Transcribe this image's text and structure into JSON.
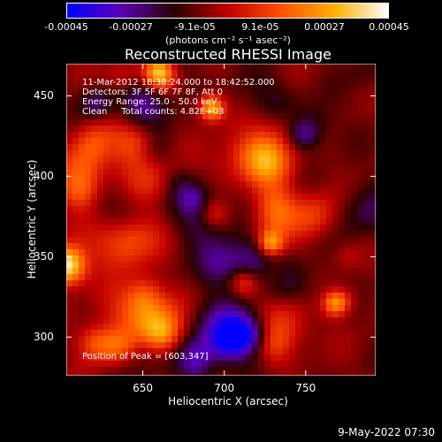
{
  "colorbar": {
    "ticks": [
      "-0.00045",
      "-0.00027",
      "-9.1e-05",
      "9.1e-05",
      "0.00027",
      "0.00045"
    ],
    "tick_values": [
      -0.00045,
      -0.00027,
      -9.1e-05,
      9.1e-05,
      0.00027,
      0.00045
    ],
    "units": "(photons cm⁻² s⁻¹ asec⁻²)",
    "colors": [
      "#0000ff",
      "#5a00b8",
      "#2a0000",
      "#c00000",
      "#ff5000",
      "#ffb000",
      "#ffffff"
    ]
  },
  "chart_data": {
    "type": "heatmap",
    "title": "Reconstructed RHESSI Image",
    "xlabel": "Heliocentric X (arcsec)",
    "ylabel": "Heliocentric Y (arcsec)",
    "xlim": [
      603,
      793
    ],
    "ylim": [
      276,
      470
    ],
    "xticks": [
      650,
      700,
      750
    ],
    "yticks": [
      300,
      350,
      400,
      450
    ],
    "zlim": [
      -0.00045,
      0.00045
    ],
    "grid": false,
    "annotations": [
      "11-Mar-2012 18:38:24.000 to 18:42:52.000",
      "Detectors: 3F 5F 6F 7F 8F, Att 0",
      "Energy Range: 25.0 - 50.0 keV",
      "Clean     Total counts: 4.82E+03",
      "Position of Peak = [603,347]"
    ]
  },
  "footer": {
    "date": "9-May-2022 07:30"
  }
}
